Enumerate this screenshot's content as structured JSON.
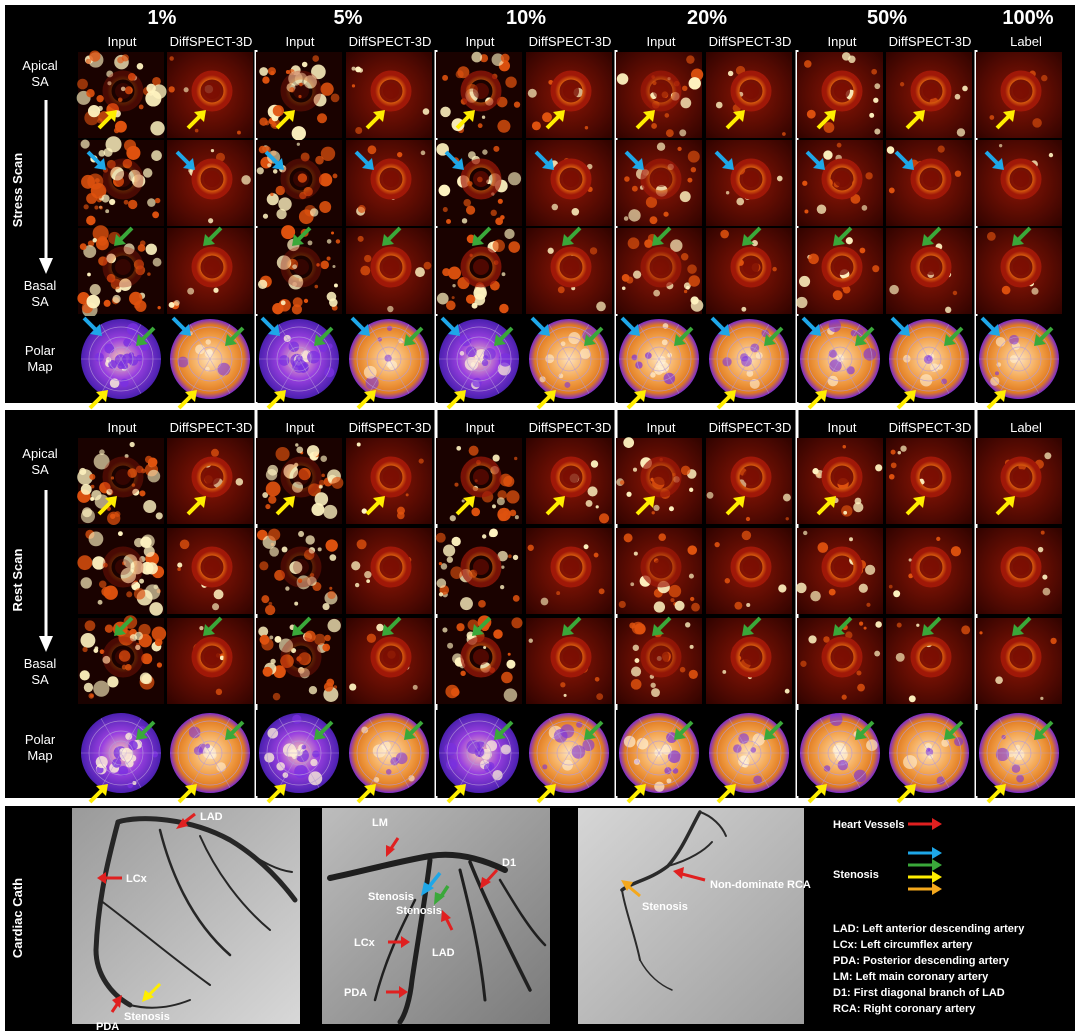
{
  "figure": {
    "percent_headers": [
      "1%",
      "5%",
      "10%",
      "20%",
      "50%",
      "100%"
    ],
    "input_label": "Input",
    "output_label": "DiffSPECT-3D",
    "label_label": "Label"
  },
  "panels": [
    {
      "side_title": "Stress Scan",
      "row_labels": {
        "apical": [
          "Apical",
          "SA"
        ],
        "basal": [
          "Basal",
          "SA"
        ],
        "polar": [
          "Polar",
          "Map"
        ]
      },
      "arrows": [
        "yellow",
        "blue",
        "green"
      ]
    },
    {
      "side_title": "Rest Scan",
      "row_labels": {
        "apical": [
          "Apical",
          "SA"
        ],
        "basal": [
          "Basal",
          "SA"
        ],
        "polar": [
          "Polar",
          "Map"
        ]
      },
      "arrows": [
        "yellow",
        "none",
        "green"
      ]
    }
  ],
  "cath": {
    "side_title": "Cardiac Cath",
    "img1": {
      "lad": "LAD",
      "lcx": "LCx",
      "pda": "PDA",
      "stenosis": "Stenosis"
    },
    "img2": {
      "lm": "LM",
      "d1": "D1",
      "stenosis_a": "Stenosis",
      "stenosis_b": "Stenosis",
      "lcx": "LCx",
      "lad": "LAD",
      "pda": "PDA"
    },
    "img3": {
      "rca": "Non-dominate RCA",
      "stenosis": "Stenosis"
    },
    "legend": {
      "heart_vessels": "Heart Vessels",
      "stenosis": "Stenosis",
      "lines": [
        "LAD: Left anterior descending artery",
        "LCx: Left circumflex artery",
        "PDA: Posterior descending artery",
        "LM: Left main coronary artery",
        "D1: First diagonal branch of LAD",
        "RCA: Right coronary artery"
      ]
    }
  },
  "colors": {
    "red": "#e02020",
    "blue": "#1ea7e8",
    "green": "#3aa83a",
    "yellow": "#ffee00",
    "orange": "#f4a81d"
  }
}
